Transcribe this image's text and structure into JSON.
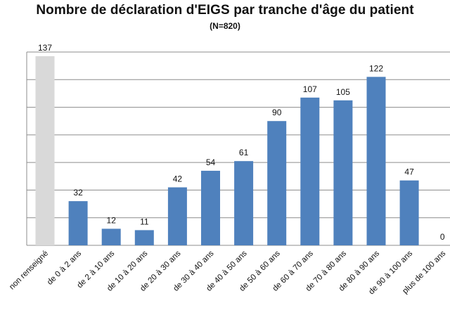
{
  "chart_data": {
    "type": "bar",
    "title": "Nombre de déclaration d'EIGS par tranche d'âge du patient",
    "subtitle": "(N=820)",
    "xlabel": "",
    "ylabel": "",
    "ylim": [
      0,
      140
    ],
    "grid": true,
    "gridlines_at": [
      0,
      20,
      40,
      60,
      80,
      100,
      120,
      140
    ],
    "legend": "none",
    "categories": [
      "non renseigné",
      "de 0 à 2 ans",
      "de 2 à 10 ans",
      "de 10 à 20 ans",
      "de 20 à 30 ans",
      "de 30 à 40 ans",
      "de 40 à 50 ans",
      "de 50 à 60 ans",
      "de 60 à 70 ans",
      "de 70 à 80 ans",
      "de 80 à 90 ans",
      "de 90 à 100 ans",
      "plus de 100 ans"
    ],
    "values": [
      137,
      32,
      12,
      11,
      42,
      54,
      61,
      90,
      107,
      105,
      122,
      47,
      0
    ],
    "data_labels": [
      "137",
      "32",
      "12",
      "11",
      "42",
      "54",
      "61",
      "90",
      "107",
      "105",
      "122",
      "47",
      "0"
    ],
    "colors": {
      "bar": "#4f81bd",
      "highlight_bar": "#d9d9d9",
      "grid": "#8c8c8c",
      "axis": "#8c8c8c"
    }
  }
}
